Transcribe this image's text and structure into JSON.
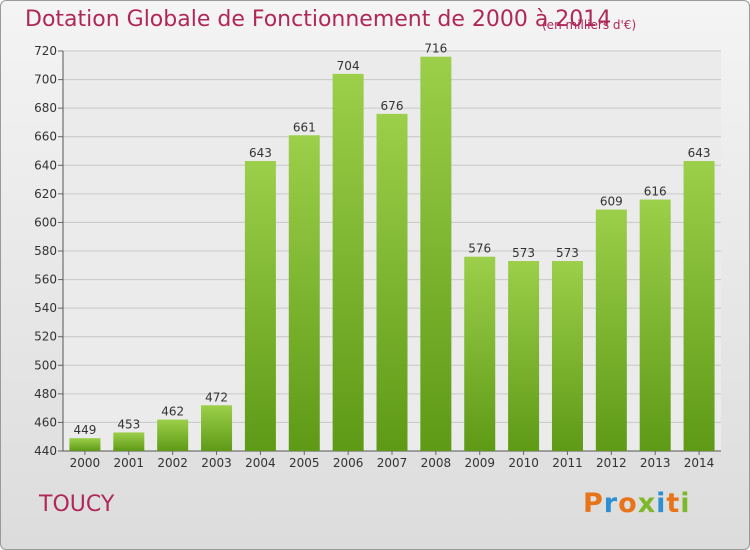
{
  "page": {
    "title": "Dotation Globale de Fonctionnement de 2000 à 2014",
    "unit": "(en milliers d'€)",
    "commune": "TOUCY",
    "brand": "Proxiti"
  },
  "chart_data": {
    "type": "bar",
    "title": "Dotation Globale de Fonctionnement de 2000 à 2014",
    "subtitle": "(en milliers d'€)",
    "xlabel": "",
    "ylabel": "",
    "categories": [
      "2000",
      "2001",
      "2002",
      "2003",
      "2004",
      "2005",
      "2006",
      "2007",
      "2008",
      "2009",
      "2010",
      "2011",
      "2012",
      "2013",
      "2014"
    ],
    "values": [
      449,
      453,
      462,
      472,
      643,
      661,
      704,
      676,
      716,
      576,
      573,
      573,
      609,
      616,
      643
    ],
    "ylim": [
      440,
      720
    ],
    "yticks": [
      440,
      460,
      480,
      500,
      520,
      540,
      560,
      580,
      600,
      620,
      640,
      660,
      680,
      700,
      720
    ],
    "grid": true,
    "bar_color": "#7cb82a",
    "text_color": "#b0285a"
  },
  "brand_colors": [
    "#e8741a",
    "#2c8fd0",
    "#e8741a",
    "#7cb82a",
    "#2c8fd0",
    "#e8741a",
    "#7cb82a"
  ]
}
